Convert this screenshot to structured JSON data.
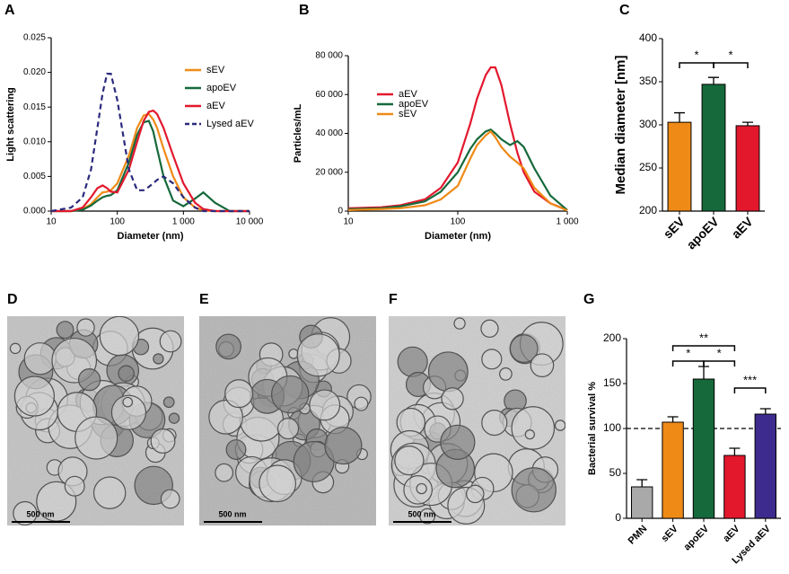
{
  "chart_data": [
    {
      "type": "line",
      "panel_label": "A",
      "xlabel": "Diameter (nm)",
      "ylabel": "Light scattering",
      "xscale": "log",
      "legend": "center-right",
      "x": [
        10,
        20,
        30,
        40,
        50,
        60,
        70,
        80,
        100,
        150,
        200,
        250,
        300,
        350,
        400,
        500,
        700,
        1000,
        1500,
        2000,
        3000,
        5000,
        10000
      ],
      "xlim": [
        10,
        10000
      ],
      "xticks": [
        10,
        100,
        {
          "value": 1000,
          "label": "1 000"
        },
        {
          "value": 10000,
          "label": "10 000"
        }
      ],
      "ylim": [
        0,
        0.025
      ],
      "yticks": [
        {
          "value": 0,
          "label": "0.000"
        },
        0.005,
        {
          "value": 0.01,
          "label": "0.010"
        },
        0.015,
        {
          "value": 0.02,
          "label": "0.020"
        },
        0.025
      ],
      "series": [
        {
          "name": "sEV",
          "color": "#ef8a17",
          "linestyle": "solid",
          "values": [
            0,
            0,
            0.0003,
            0.001,
            0.002,
            0.0027,
            0.0028,
            0.003,
            0.004,
            0.008,
            0.012,
            0.0138,
            0.014,
            0.0132,
            0.012,
            0.009,
            0.005,
            0.002,
            0.0005,
            0.0001,
            0,
            0,
            0
          ]
        },
        {
          "name": "apoEV",
          "color": "#16693b",
          "linestyle": "solid",
          "values": [
            0,
            0,
            0.0002,
            0.0008,
            0.0015,
            0.002,
            0.0022,
            0.0023,
            0.003,
            0.007,
            0.011,
            0.0128,
            0.013,
            0.0115,
            0.009,
            0.005,
            0.0015,
            0.0007,
            0.0018,
            0.0027,
            0.0012,
            0,
            0
          ]
        },
        {
          "name": "aEV",
          "color": "#e3182d",
          "linestyle": "solid",
          "values": [
            0,
            0,
            0.0005,
            0.002,
            0.0033,
            0.0037,
            0.0033,
            0.0028,
            0.0027,
            0.006,
            0.01,
            0.013,
            0.0143,
            0.0145,
            0.014,
            0.012,
            0.008,
            0.004,
            0.0012,
            0.0003,
            0,
            0,
            0
          ]
        },
        {
          "name": "Lysed aEV",
          "color": "#2b2a7c",
          "linestyle": "dashed",
          "values": [
            0,
            0.0005,
            0.002,
            0.006,
            0.012,
            0.017,
            0.0198,
            0.0198,
            0.016,
            0.006,
            0.003,
            0.003,
            0.0035,
            0.004,
            0.0045,
            0.005,
            0.004,
            0.002,
            0.0005,
            0,
            0,
            0,
            0
          ]
        }
      ]
    },
    {
      "type": "line",
      "panel_label": "B",
      "xlabel": "Diameter (nm)",
      "ylabel": "Particles/mL",
      "xscale": "log",
      "legend": "center-left",
      "x": [
        10,
        20,
        30,
        50,
        70,
        100,
        130,
        150,
        180,
        200,
        220,
        250,
        300,
        350,
        400,
        500,
        700,
        1000
      ],
      "xlim": [
        10,
        1000
      ],
      "xticks": [
        10,
        100,
        {
          "value": 1000,
          "label": "1 000"
        }
      ],
      "ylim": [
        0,
        80000
      ],
      "yticks": [
        0,
        {
          "value": 20000,
          "label": "20 000"
        },
        {
          "value": 40000,
          "label": "40 000"
        },
        {
          "value": 60000,
          "label": "60 000"
        },
        {
          "value": 80000,
          "label": "80 000"
        }
      ],
      "series": [
        {
          "name": "aEV",
          "color": "#e3182d",
          "linestyle": "solid",
          "values": [
            1500,
            2000,
            3000,
            6000,
            12000,
            25000,
            45000,
            58000,
            70000,
            74000,
            74000,
            65000,
            45000,
            30000,
            20000,
            10000,
            4000,
            500
          ]
        },
        {
          "name": "apoEV",
          "color": "#16693b",
          "linestyle": "solid",
          "values": [
            1000,
            1500,
            2500,
            5000,
            10000,
            20000,
            32000,
            37000,
            41000,
            42000,
            40000,
            37000,
            34000,
            36000,
            33000,
            22000,
            8000,
            500
          ]
        },
        {
          "name": "sEV",
          "color": "#ef8a17",
          "linestyle": "solid",
          "values": [
            500,
            1000,
            1500,
            3000,
            6000,
            13000,
            27000,
            34000,
            39000,
            41000,
            38000,
            33000,
            28000,
            25000,
            22000,
            12000,
            4000,
            300
          ]
        }
      ]
    },
    {
      "type": "bar",
      "panel_label": "C",
      "ylabel": "Median diameter [nm]",
      "categories": [
        "sEV",
        "apoEV",
        "aEV"
      ],
      "values": [
        303,
        347,
        299
      ],
      "errors": [
        11,
        8,
        4
      ],
      "colors": [
        "#ef8a17",
        "#16693b",
        "#e3182d"
      ],
      "ylim": [
        200,
        400
      ],
      "yticks": [
        200,
        250,
        300,
        350,
        400
      ],
      "annotations": [
        "*",
        "*"
      ]
    },
    {
      "type": "bar",
      "panel_label": "G",
      "ylabel": "Bacterial survival %",
      "categories": [
        "PMN",
        "sEV",
        "apoEV",
        "aEV",
        "Lysed aEV"
      ],
      "values": [
        35,
        107,
        155,
        70,
        116
      ],
      "errors": [
        8,
        6,
        14,
        8,
        6
      ],
      "colors": [
        "#a9a9a9",
        "#ef8a17",
        "#16693b",
        "#e3182d",
        "#3d2c8e"
      ],
      "ylim": [
        0,
        200
      ],
      "yticks": [
        0,
        50,
        100,
        150,
        200
      ],
      "reference_line": 100,
      "annotations": [
        "**",
        "*",
        "*",
        "***"
      ]
    }
  ],
  "images": [
    {
      "panel_label": "D",
      "scale_bar": "500 nm"
    },
    {
      "panel_label": "E",
      "scale_bar": "500 nm"
    },
    {
      "panel_label": "F",
      "scale_bar": "500 nm"
    }
  ]
}
